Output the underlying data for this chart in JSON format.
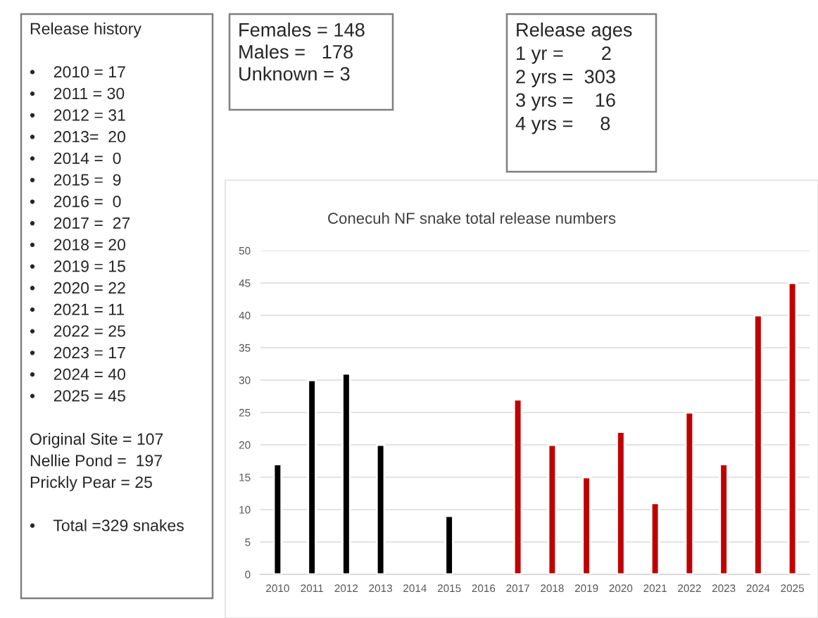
{
  "chart_data": {
    "type": "bar",
    "title": "Conecuh NF snake total release numbers",
    "categories": [
      "2010",
      "2011",
      "2012",
      "2013",
      "2014",
      "2015",
      "2016",
      "2017",
      "2018",
      "2019",
      "2020",
      "2021",
      "2022",
      "2023",
      "2024",
      "2025"
    ],
    "values": [
      17,
      30,
      31,
      20,
      0,
      9,
      0,
      27,
      20,
      15,
      22,
      11,
      25,
      17,
      40,
      45
    ],
    "colors": [
      "#000000",
      "#000000",
      "#000000",
      "#000000",
      "#000000",
      "#000000",
      "#000000",
      "#c00000",
      "#c00000",
      "#c00000",
      "#c00000",
      "#c00000",
      "#c00000",
      "#c00000",
      "#c00000",
      "#c00000"
    ],
    "ylim": [
      0,
      50
    ],
    "yticks": [
      0,
      5,
      10,
      15,
      20,
      25,
      30,
      35,
      40,
      45,
      50
    ],
    "grid": "y",
    "annotations": [
      "Release history\n\n•    2010 = 17\n•    2011 = 30\n•    2012 = 31\n•    2013=  20\n•    2014 =  0\n•    2015 =  9\n•    2016 =  0\n•    2017 =  27\n•    2018 = 20\n•    2019 = 15\n•    2020 = 22\n•    2021 = 11\n•    2022 = 25\n•    2023 = 17\n•    2024 = 40\n•    2025 = 45\n\nOriginal Site = 107\nNellie Pond =  197\nPrickly Pear = 25\n\n•    Total =329 snakes",
      "Females = 148\nMales =   178\nUnknown = 3",
      "Release ages\n1 yr =       2\n2 yrs =  303\n3 yrs =    16\n4 yrs =     8"
    ]
  }
}
